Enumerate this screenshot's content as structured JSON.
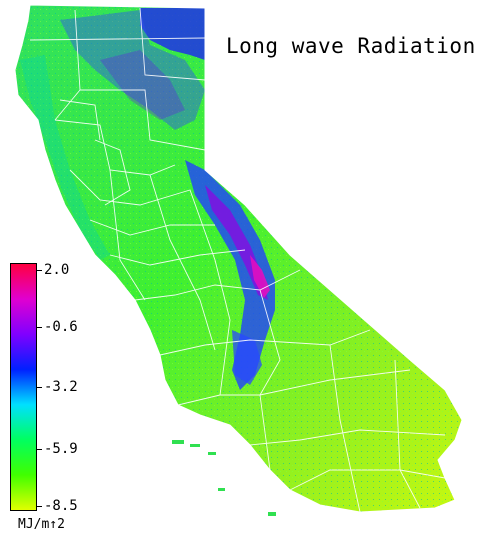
{
  "map": {
    "title": "Long wave Radiation",
    "region": "California",
    "colors": {
      "land_low": "#dcff00",
      "land_mid": "#2cf02c",
      "land_cyan": "#00e0c0",
      "land_blue": "#2040ff",
      "land_violet": "#8010e0",
      "land_magenta": "#e010c0",
      "land_red": "#ff0040",
      "county_lines": "#ffffff"
    }
  },
  "legend": {
    "unit": "MJ/m↑2",
    "colors": [
      "#ff0040",
      "#e000d0",
      "#8000ff",
      "#0020ff",
      "#00e0ff",
      "#00ff60",
      "#40ff00",
      "#e0ff00"
    ],
    "ticks": [
      {
        "label": "2.0",
        "value": 2.0
      },
      {
        "label": "-0.6",
        "value": -0.6
      },
      {
        "label": "-3.2",
        "value": -3.2
      },
      {
        "label": "-5.9",
        "value": -5.9
      },
      {
        "label": "-8.5",
        "value": -8.5
      }
    ]
  }
}
